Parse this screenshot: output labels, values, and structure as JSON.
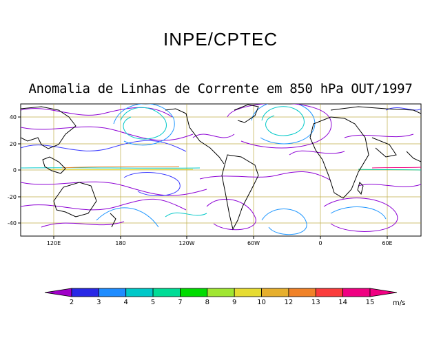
{
  "header": {
    "org": "INPE/CPTEC",
    "title": "Anomalia de Linhas de Corrente em 850 hPa OUT/1997"
  },
  "map": {
    "lon_ticks": [
      "120E",
      "180",
      "120W",
      "60W",
      "0",
      "60E"
    ],
    "lat_ticks": [
      "40",
      "20",
      "0",
      "-20",
      "-40"
    ],
    "grid": true,
    "streamline_palette": [
      "#8c00d4",
      "#3b3bff",
      "#1e96ff",
      "#00c8c8",
      "#00c896",
      "#00d200",
      "#a0e632",
      "#e6dc32",
      "#e6af2d",
      "#f08228",
      "#fa3c3c",
      "#f00082"
    ]
  },
  "colorbar": {
    "labels": [
      "2",
      "3",
      "4",
      "5",
      "7",
      "8",
      "9",
      "10",
      "12",
      "13",
      "14",
      "15"
    ],
    "colors": [
      "#a000c8",
      "#2828e6",
      "#1e8cff",
      "#00c8c8",
      "#00dc96",
      "#00dc00",
      "#a0e632",
      "#e6dc32",
      "#e6af2d",
      "#f08228",
      "#fa3c3c",
      "#f00082"
    ],
    "unit": "m/s"
  }
}
